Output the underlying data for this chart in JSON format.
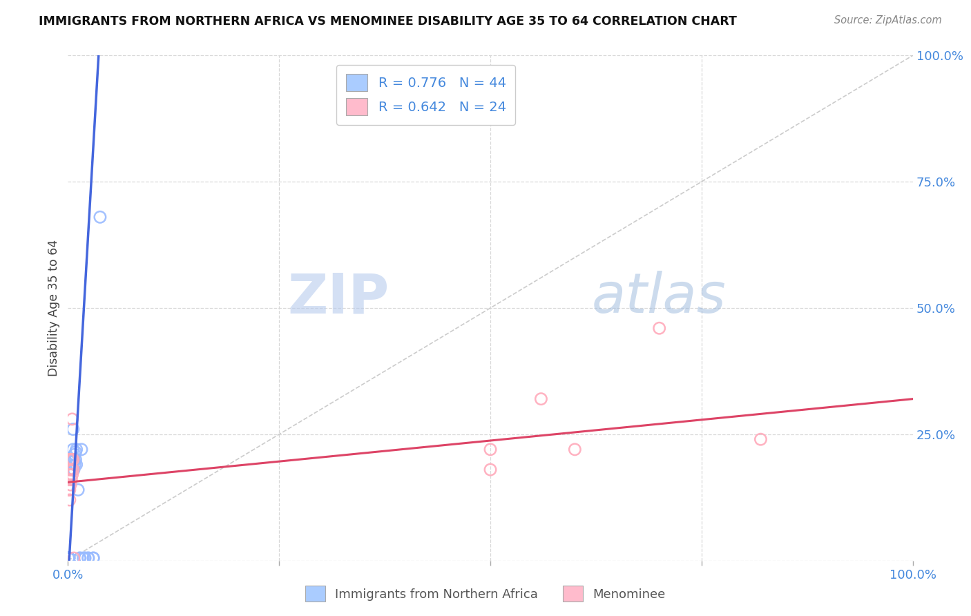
{
  "title": "IMMIGRANTS FROM NORTHERN AFRICA VS MENOMINEE DISABILITY AGE 35 TO 64 CORRELATION CHART",
  "source": "Source: ZipAtlas.com",
  "ylabel": "Disability Age 35 to 64",
  "legend_bottom": [
    "Immigrants from Northern Africa",
    "Menominee"
  ],
  "R_blue": 0.776,
  "N_blue": 44,
  "R_pink": 0.642,
  "N_pink": 24,
  "blue_scatter_color": "#99bbff",
  "pink_scatter_color": "#ffaabb",
  "blue_line_color": "#4466dd",
  "pink_line_color": "#dd4466",
  "diag_line_color": "#cccccc",
  "watermark_zip": "ZIP",
  "watermark_atlas": "atlas",
  "blue_points": [
    [
      0.001,
      0.005
    ],
    [
      0.001,
      0.005
    ],
    [
      0.001,
      0.005
    ],
    [
      0.001,
      0.005
    ],
    [
      0.001,
      0.005
    ],
    [
      0.001,
      0.005
    ],
    [
      0.001,
      0.005
    ],
    [
      0.001,
      0.005
    ],
    [
      0.001,
      0.005
    ],
    [
      0.001,
      0.005
    ],
    [
      0.001,
      0.005
    ],
    [
      0.001,
      0.005
    ],
    [
      0.001,
      0.005
    ],
    [
      0.001,
      0.005
    ],
    [
      0.001,
      0.005
    ],
    [
      0.001,
      0.005
    ],
    [
      0.001,
      0.005
    ],
    [
      0.001,
      0.005
    ],
    [
      0.001,
      0.005
    ],
    [
      0.001,
      0.005
    ],
    [
      0.005,
      0.18
    ],
    [
      0.005,
      0.2
    ],
    [
      0.006,
      0.22
    ],
    [
      0.006,
      0.26
    ],
    [
      0.007,
      0.18
    ],
    [
      0.007,
      0.2
    ],
    [
      0.008,
      0.19
    ],
    [
      0.008,
      0.21
    ],
    [
      0.009,
      0.2
    ],
    [
      0.009,
      0.215
    ],
    [
      0.01,
      0.22
    ],
    [
      0.01,
      0.19
    ],
    [
      0.012,
      0.14
    ],
    [
      0.014,
      0.005
    ],
    [
      0.014,
      0.005
    ],
    [
      0.016,
      0.22
    ],
    [
      0.018,
      0.005
    ],
    [
      0.02,
      0.005
    ],
    [
      0.02,
      0.005
    ],
    [
      0.024,
      0.005
    ],
    [
      0.024,
      0.005
    ],
    [
      0.03,
      0.005
    ],
    [
      0.03,
      0.005
    ],
    [
      0.038,
      0.68
    ]
  ],
  "pink_points": [
    [
      0.001,
      0.14
    ],
    [
      0.001,
      0.16
    ],
    [
      0.001,
      0.18
    ],
    [
      0.001,
      0.2
    ],
    [
      0.002,
      0.12
    ],
    [
      0.002,
      0.14
    ],
    [
      0.002,
      0.17
    ],
    [
      0.003,
      0.15
    ],
    [
      0.003,
      0.18
    ],
    [
      0.003,
      0.2
    ],
    [
      0.004,
      0.16
    ],
    [
      0.004,
      0.18
    ],
    [
      0.005,
      0.17
    ],
    [
      0.005,
      0.2
    ],
    [
      0.005,
      0.28
    ],
    [
      0.006,
      0.18
    ],
    [
      0.006,
      0.2
    ],
    [
      0.007,
      0.005
    ],
    [
      0.5,
      0.22
    ],
    [
      0.5,
      0.18
    ],
    [
      0.56,
      0.32
    ],
    [
      0.6,
      0.22
    ],
    [
      0.7,
      0.46
    ],
    [
      0.82,
      0.24
    ]
  ],
  "xlim": [
    0.0,
    1.0
  ],
  "ylim": [
    0.0,
    1.0
  ],
  "background_color": "#ffffff",
  "grid_color": "#d8d8d8",
  "blue_line_x": [
    0.0,
    0.038
  ],
  "blue_line_y": [
    -0.04,
    1.05
  ],
  "pink_line_x": [
    0.0,
    1.0
  ],
  "pink_line_y": [
    0.155,
    0.32
  ]
}
